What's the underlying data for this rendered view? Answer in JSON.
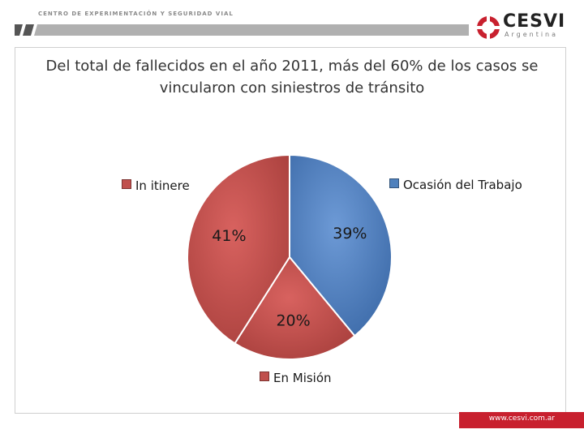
{
  "header": {
    "organization": "CENTRO DE EXPERIMENTACIÓN Y SEGURIDAD VIAL",
    "logo_name": "CESVI",
    "logo_sub": "Argentina"
  },
  "footer": {
    "url": "www.cesvi.com.ar"
  },
  "colors": {
    "brand_red": "#c8202e",
    "accent_blue": "#4f81bd",
    "accent_red": "#c0504d"
  },
  "chart_data": {
    "type": "pie",
    "title": "Del total de fallecidos en el año 2011, más del 60% de los casos se vincularon con siniestros de tránsito",
    "slices": [
      {
        "label": "Ocasión del Trabajo",
        "value": 39,
        "display": "39%",
        "color": "#4f81bd"
      },
      {
        "label": "En Misión",
        "value": 20,
        "display": "20%",
        "color": "#c0504d"
      },
      {
        "label": "In itinere",
        "value": 41,
        "display": "41%",
        "color": "#c0504d"
      }
    ],
    "start_angle": "12 o'clock",
    "direction": "clockwise"
  }
}
